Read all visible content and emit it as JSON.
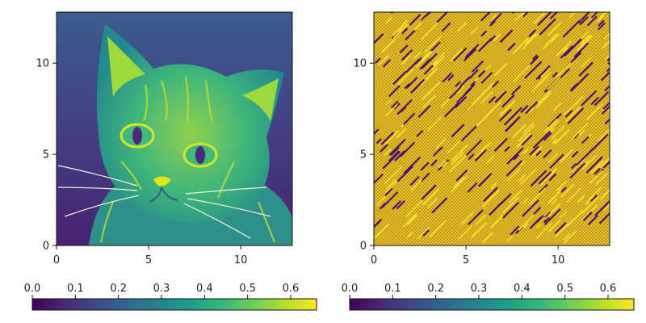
{
  "chart_data": [
    {
      "type": "heatmap",
      "content": "grayscale cat photograph rendered with a viridis colormap",
      "xlim": [
        0,
        12.8
      ],
      "ylim": [
        0,
        12.8
      ],
      "x_ticks": [
        "0",
        "5",
        "10"
      ],
      "y_ticks": [
        "0",
        "5",
        "10"
      ],
      "colormap": "viridis",
      "colorbar": {
        "orientation": "horizontal",
        "placement": "bottom",
        "range": [
          0,
          0.66
        ],
        "ticks": [
          "0.0",
          "0.1",
          "0.2",
          "0.3",
          "0.4",
          "0.5",
          "0.6"
        ]
      }
    },
    {
      "type": "heatmap",
      "content": "noise pattern: mostly high values with scattered diagonal streaks of low values",
      "xlim": [
        0,
        12.8
      ],
      "ylim": [
        0,
        12.8
      ],
      "x_ticks": [
        "0",
        "5",
        "10"
      ],
      "y_ticks": [
        "0",
        "5",
        "10"
      ],
      "colormap": "viridis",
      "colorbar": {
        "orientation": "horizontal",
        "placement": "bottom",
        "range": [
          0,
          0.66
        ],
        "ticks": [
          "0.0",
          "0.1",
          "0.2",
          "0.3",
          "0.4",
          "0.5",
          "0.6"
        ]
      }
    }
  ],
  "colors": {
    "viridis_stops": [
      "#440154",
      "#482878",
      "#3e4989",
      "#31688e",
      "#26828e",
      "#1f9e89",
      "#35b779",
      "#6ece58",
      "#b5de2b",
      "#fde725"
    ],
    "noise_high": "#c9a019",
    "noise_low": "#4b1268"
  }
}
